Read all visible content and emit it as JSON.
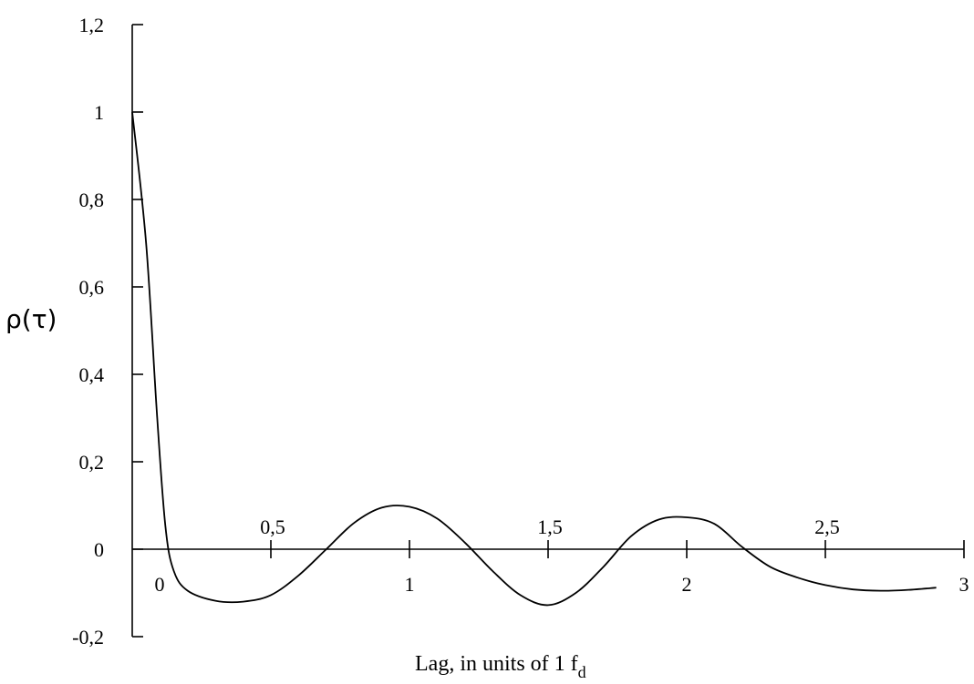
{
  "chart_data": {
    "type": "line",
    "title": "",
    "xlabel_main": "Lag, in units of 1 f",
    "xlabel_sub": "d",
    "ylabel": "ρ(τ)",
    "xlim": [
      0,
      3
    ],
    "ylim": [
      -0.2,
      1.2
    ],
    "y_ticks": [
      {
        "value": -0.2,
        "label": "-0,2"
      },
      {
        "value": 0,
        "label": "0"
      },
      {
        "value": 0.2,
        "label": "0,2"
      },
      {
        "value": 0.4,
        "label": "0,4"
      },
      {
        "value": 0.6,
        "label": "0,6"
      },
      {
        "value": 0.8,
        "label": "0,8"
      },
      {
        "value": 1,
        "label": "1"
      },
      {
        "value": 1.2,
        "label": "1,2"
      }
    ],
    "x_ticks_below": [
      {
        "value": 0,
        "label": "0"
      },
      {
        "value": 1,
        "label": "1"
      },
      {
        "value": 2,
        "label": "2"
      },
      {
        "value": 3,
        "label": "3"
      }
    ],
    "x_ticks_above": [
      {
        "value": 0.5,
        "label": "0,5"
      },
      {
        "value": 1.5,
        "label": "1,5"
      },
      {
        "value": 2.5,
        "label": "2,5"
      }
    ],
    "grid": false,
    "series": [
      {
        "x": [
          0,
          0.05,
          0.09,
          0.12,
          0.15,
          0.2,
          0.3,
          0.4,
          0.5,
          0.6,
          0.7,
          0.8,
          0.9,
          1.0,
          1.1,
          1.2,
          1.3,
          1.4,
          1.5,
          1.6,
          1.7,
          1.8,
          1.9,
          2.0,
          2.1,
          2.2,
          2.3,
          2.4,
          2.5,
          2.6,
          2.7,
          2.8,
          2.9
        ],
        "y": [
          1.0,
          0.7,
          0.3,
          0.05,
          -0.05,
          -0.095,
          -0.118,
          -0.12,
          -0.105,
          -0.06,
          0.0,
          0.06,
          0.095,
          0.097,
          0.07,
          0.015,
          -0.05,
          -0.105,
          -0.128,
          -0.1,
          -0.04,
          0.03,
          0.068,
          0.073,
          0.058,
          0.005,
          -0.04,
          -0.065,
          -0.082,
          -0.092,
          -0.095,
          -0.093,
          -0.088
        ]
      }
    ]
  }
}
